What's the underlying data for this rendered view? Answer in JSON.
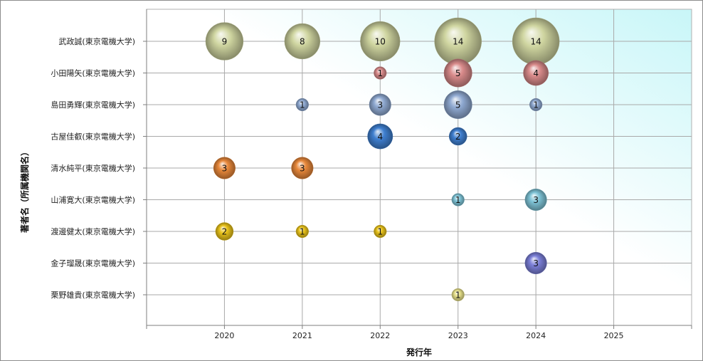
{
  "chart_data": {
    "type": "scatter",
    "subtype": "bubble",
    "xlabel": "発行年",
    "ylabel": "著者名（所属機関名）",
    "x_ticks": [
      2020,
      2021,
      2022,
      2023,
      2024,
      2025
    ],
    "xlim": [
      2019,
      2026
    ],
    "grid": true,
    "legend": "none",
    "categories": [
      "武政誠(東京電機大学)",
      "小田陽矢(東京電機大学)",
      "島田勇輝(東京電機大学)",
      "古屋佳叡(東京電機大学)",
      "清水純平(東京電機大学)",
      "山浦寛大(東京電機大学)",
      "渡邊健太(東京電機大学)",
      "金子瑠晟(東京電機大学)",
      "栗野雄貴(東京電機大学)"
    ],
    "series": [
      {
        "category": "武政誠(東京電機大学)",
        "color": "#cfd5a0",
        "points": [
          {
            "x": 2020,
            "value": 9
          },
          {
            "x": 2021,
            "value": 8
          },
          {
            "x": 2022,
            "value": 10
          },
          {
            "x": 2023,
            "value": 14
          },
          {
            "x": 2024,
            "value": 14
          }
        ]
      },
      {
        "category": "小田陽矢(東京電機大学)",
        "color": "#d98b8b",
        "points": [
          {
            "x": 2022,
            "value": 1
          },
          {
            "x": 2023,
            "value": 5
          },
          {
            "x": 2024,
            "value": 4
          }
        ]
      },
      {
        "category": "島田勇輝(東京電機大学)",
        "color": "#8fa9d1",
        "points": [
          {
            "x": 2021,
            "value": 1
          },
          {
            "x": 2022,
            "value": 3
          },
          {
            "x": 2023,
            "value": 5
          },
          {
            "x": 2024,
            "value": 1
          }
        ]
      },
      {
        "category": "古屋佳叡(東京電機大学)",
        "color": "#3f7fd0",
        "points": [
          {
            "x": 2022,
            "value": 4
          },
          {
            "x": 2023,
            "value": 2
          }
        ]
      },
      {
        "category": "清水純平(東京電機大学)",
        "color": "#e8883a",
        "points": [
          {
            "x": 2020,
            "value": 3
          },
          {
            "x": 2021,
            "value": 3
          }
        ]
      },
      {
        "category": "山浦寛大(東京電機大学)",
        "color": "#7ec3d6",
        "points": [
          {
            "x": 2023,
            "value": 1
          },
          {
            "x": 2024,
            "value": 3
          }
        ]
      },
      {
        "category": "渡邊健太(東京電機大学)",
        "color": "#e8c21a",
        "points": [
          {
            "x": 2020,
            "value": 2
          },
          {
            "x": 2021,
            "value": 1
          },
          {
            "x": 2022,
            "value": 1
          }
        ]
      },
      {
        "category": "金子瑠晟(東京電機大学)",
        "color": "#7b7fd8",
        "points": [
          {
            "x": 2024,
            "value": 3
          }
        ]
      },
      {
        "category": "栗野雄貴(東京電機大学)",
        "color": "#e6e08a",
        "points": [
          {
            "x": 2023,
            "value": 1
          }
        ]
      }
    ]
  }
}
